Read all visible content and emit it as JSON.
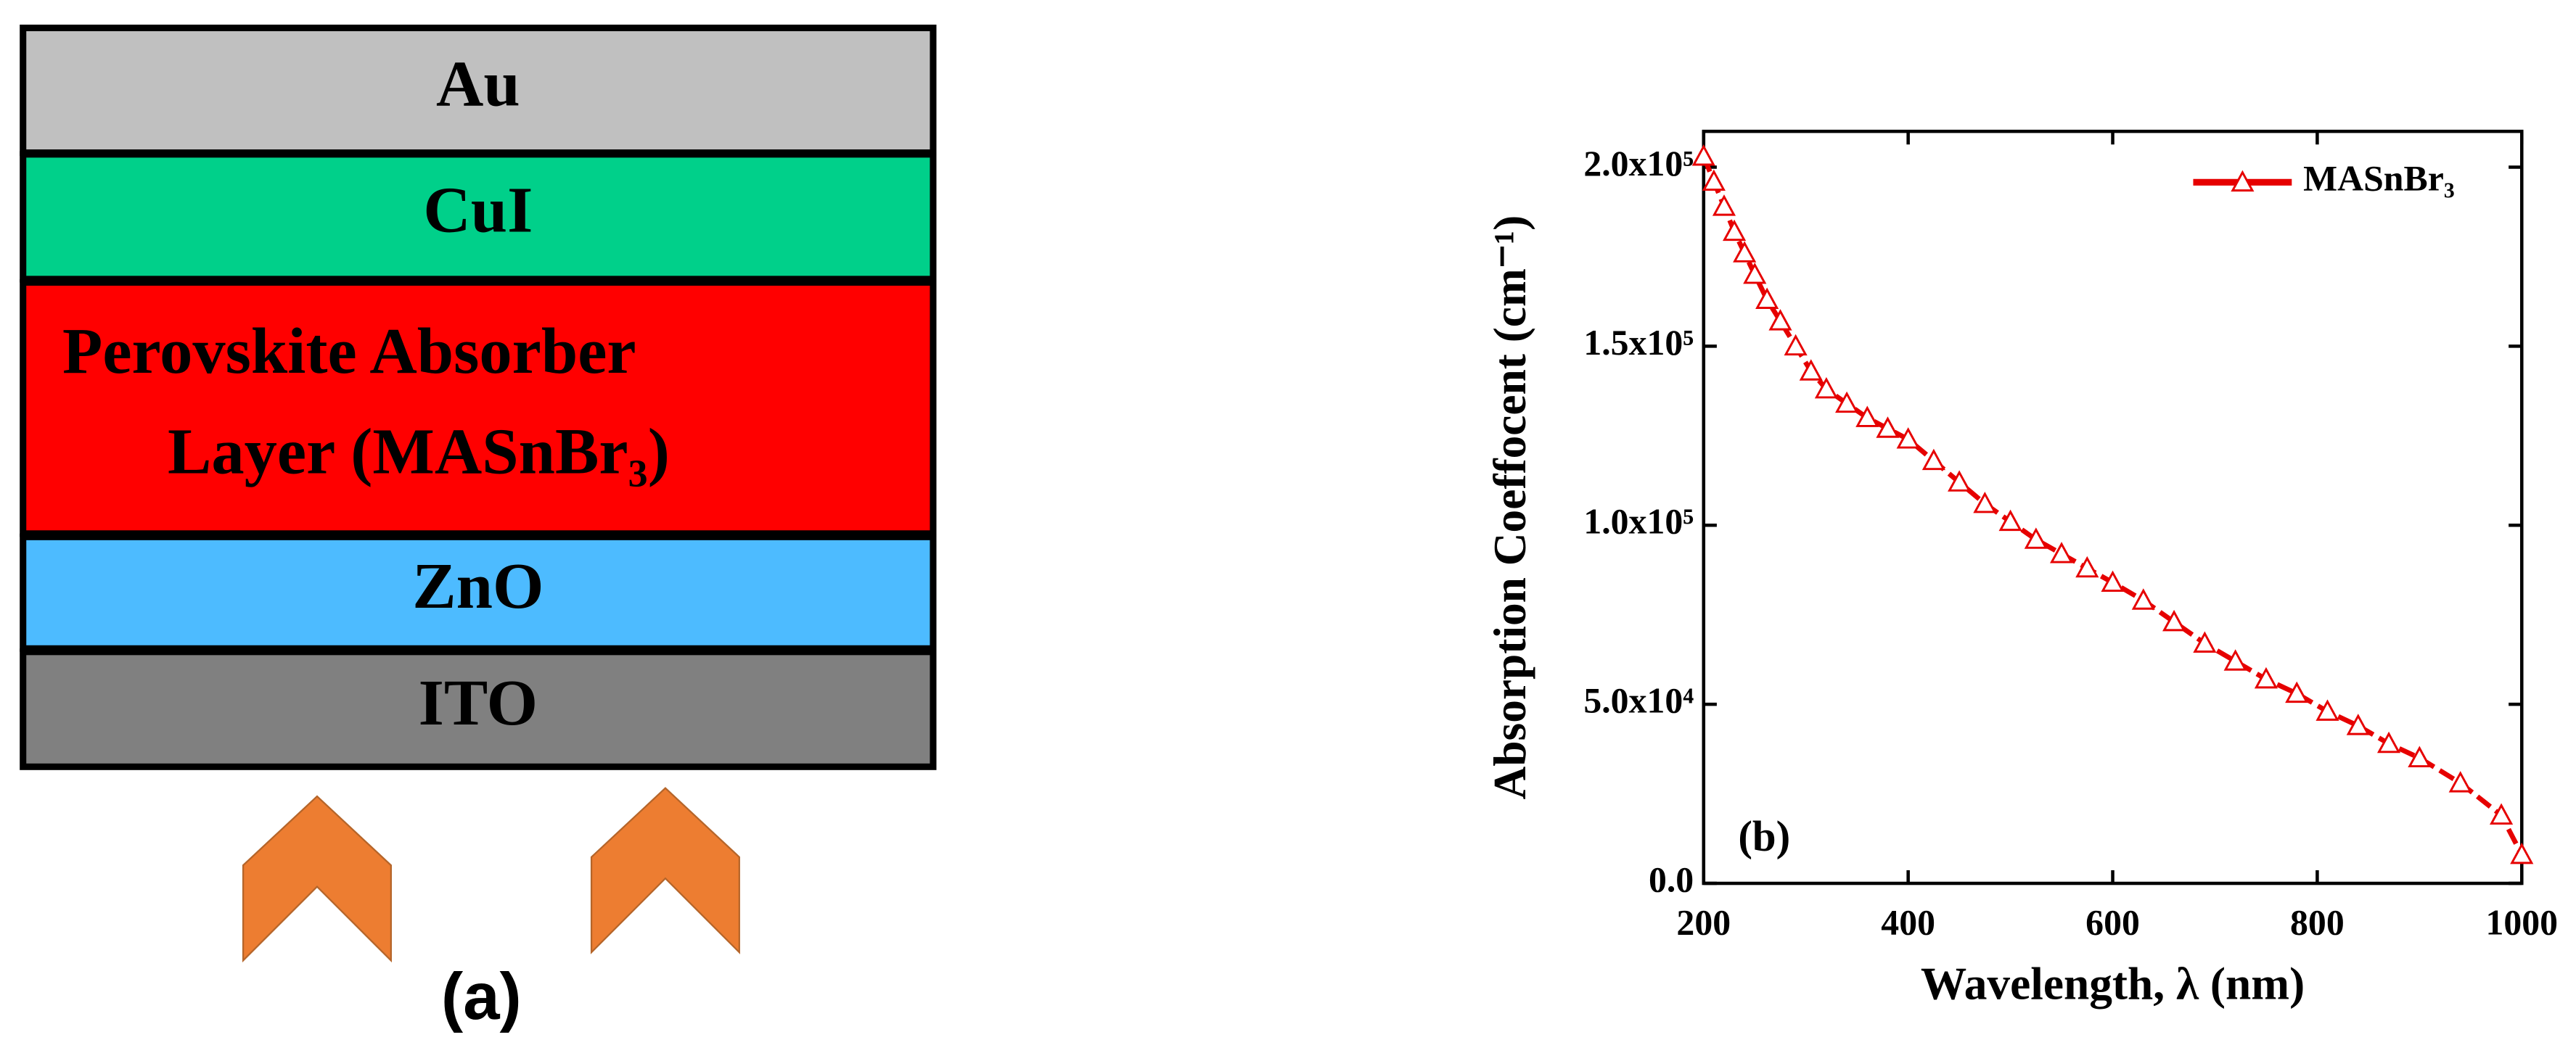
{
  "diagram": {
    "layers": [
      {
        "lines": [
          "Au"
        ],
        "color": "#c0c0c0"
      },
      {
        "lines": [
          "CuI"
        ],
        "color": "#00d08a"
      },
      {
        "lines": [
          "Perovskite Absorber",
          "Layer (MASnBr₃)"
        ],
        "color": "#ff0000"
      },
      {
        "lines": [
          "ZnO"
        ],
        "color": "#4dbbff"
      },
      {
        "lines": [
          "ITO"
        ],
        "color": "#808080"
      }
    ],
    "label": "(a)"
  },
  "chart_data": {
    "type": "line",
    "annotation": "(b)",
    "xlabel": "Wavelength, λ (nm)",
    "ylabel": "Absorption Coeffocent (cm⁻¹)",
    "xlim": [
      200,
      1000
    ],
    "ylim": [
      0,
      210000
    ],
    "xticks": [
      200,
      400,
      600,
      800,
      1000
    ],
    "yticks": [
      {
        "value": 0,
        "label": "0.0"
      },
      {
        "value": 50000,
        "label": "5.0x10⁴"
      },
      {
        "value": 100000,
        "label": "1.0x10⁵"
      },
      {
        "value": 150000,
        "label": "1.5x10⁵"
      },
      {
        "value": 200000,
        "label": "2.0x10⁵"
      }
    ],
    "legend": "upper right",
    "x": [
      200,
      210,
      220,
      230,
      240,
      250,
      262,
      275,
      290,
      305,
      320,
      340,
      360,
      380,
      400,
      425,
      450,
      475,
      500,
      525,
      550,
      575,
      600,
      630,
      660,
      690,
      720,
      750,
      780,
      810,
      840,
      870,
      900,
      940,
      980,
      1000
    ],
    "series": [
      {
        "name": "MASnBr₃",
        "color": "#e60000",
        "values": [
          203000,
          196000,
          189000,
          182000,
          176000,
          170000,
          163000,
          157000,
          150000,
          143000,
          138000,
          134000,
          130000,
          127000,
          124000,
          118000,
          112000,
          106000,
          101000,
          96000,
          92000,
          88000,
          84000,
          79000,
          73000,
          67000,
          62000,
          57000,
          53000,
          48000,
          44000,
          39000,
          35000,
          28000,
          19000,
          8000
        ]
      }
    ]
  }
}
